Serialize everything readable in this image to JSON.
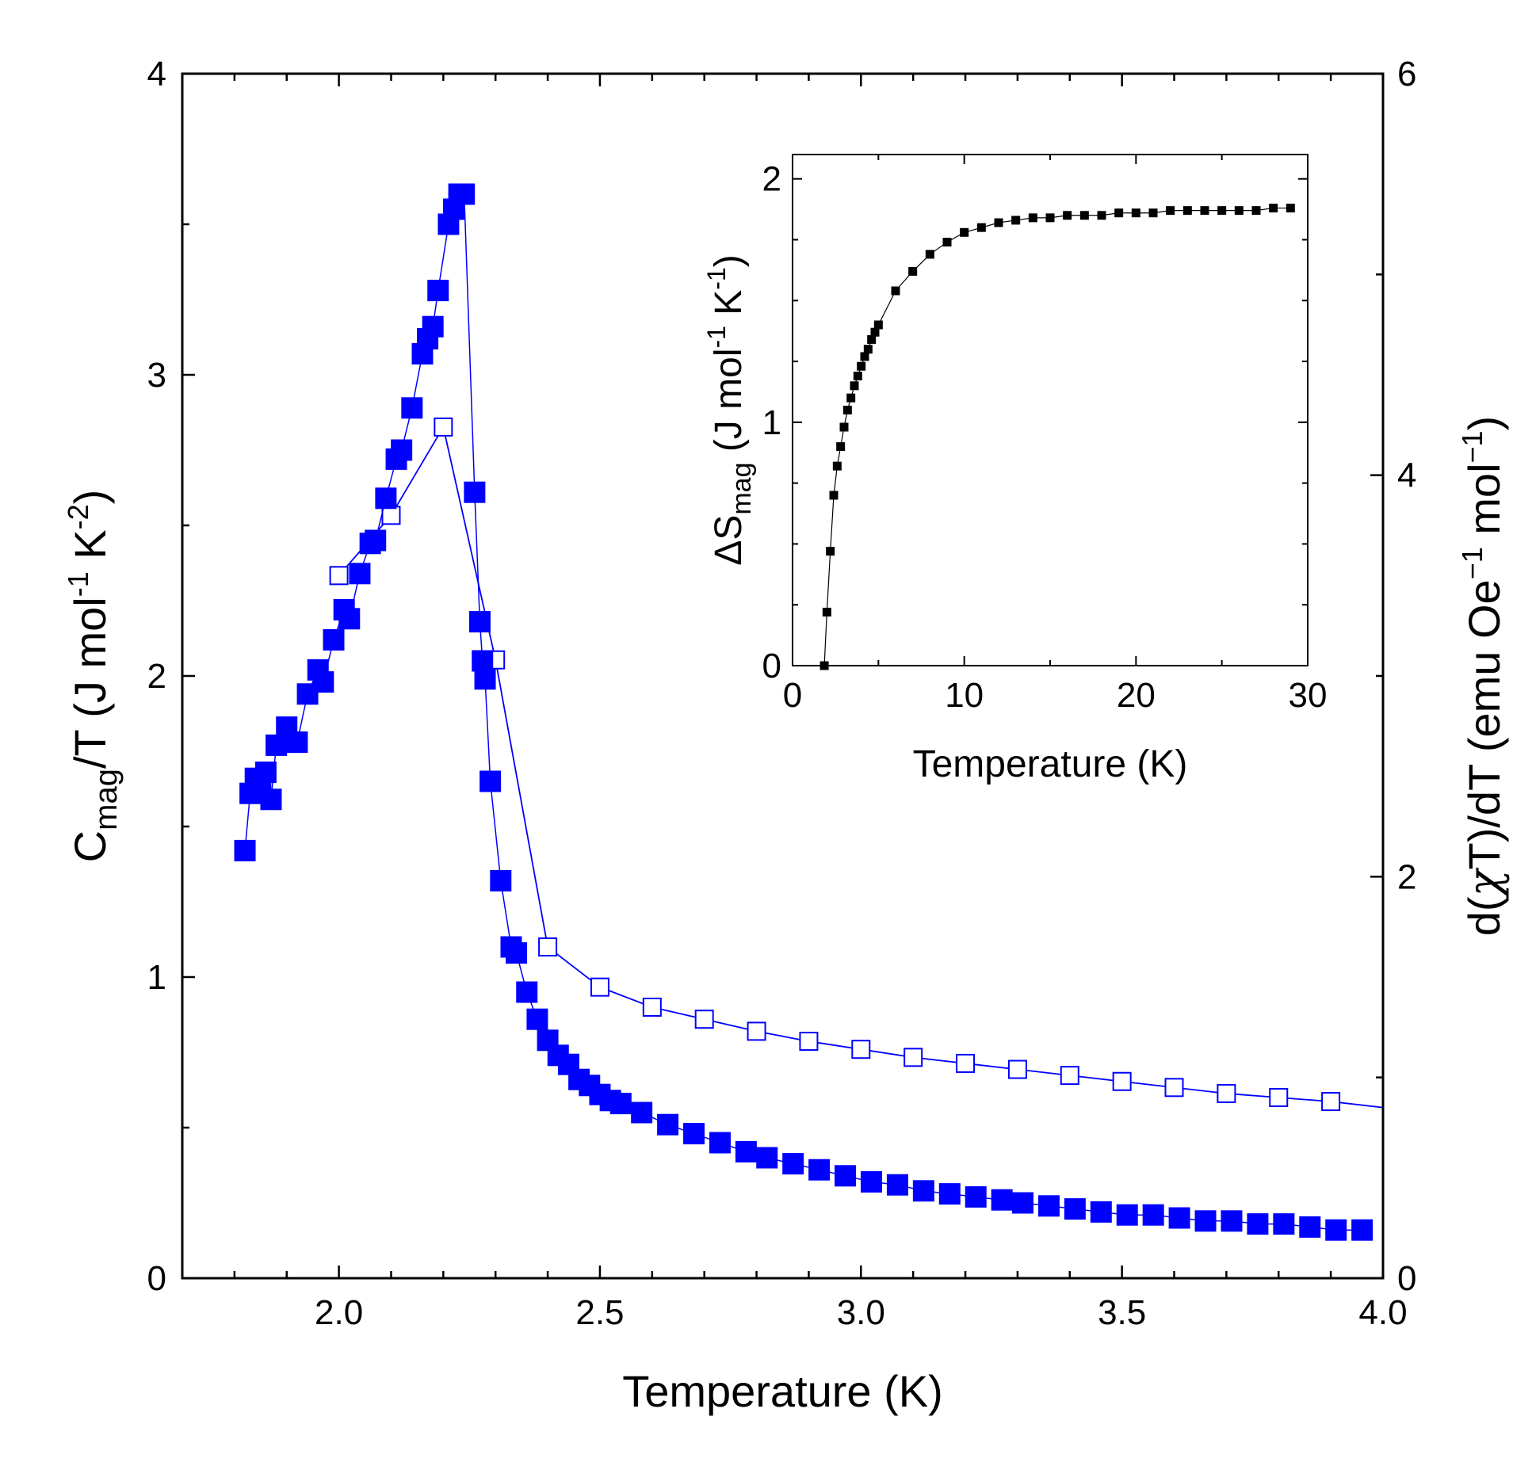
{
  "chart_data": [
    {
      "id": "main",
      "type": "scatter",
      "xlabel": "Temperature (K)",
      "ylabel_left": {
        "main": "C",
        "sub": "mag",
        "rest": "/T (J mol",
        "sup1": "-1",
        "mid": " K",
        "sup2": "-2",
        "end": ")"
      },
      "ylabel_right": {
        "pre": "d(",
        "chi": "χ",
        "mid": "T)/dT (emu Oe",
        "sup1": "−1",
        "mid2": " mol",
        "sup2": "−1",
        "end": ")"
      },
      "xlim": [
        1.7,
        4.0
      ],
      "ylim_left": [
        0,
        4
      ],
      "ylim_right": [
        0,
        6
      ],
      "xticks": [
        2.0,
        2.5,
        3.0,
        3.5,
        4.0
      ],
      "xtick_labels": [
        "2.0",
        "2.5",
        "3.0",
        "3.5",
        "4.0"
      ],
      "yticks_left": [
        0,
        1,
        2,
        3,
        4
      ],
      "ytick_labels_left": [
        "0",
        "1",
        "2",
        "3",
        "4"
      ],
      "yticks_right": [
        0,
        2,
        4,
        6
      ],
      "ytick_labels_right": [
        "0",
        "2",
        "4",
        "6"
      ],
      "color": "#0000ff",
      "series": [
        {
          "name": "Cmag/T",
          "axis": "left",
          "marker": "filled-square",
          "x": [
            1.82,
            1.83,
            1.84,
            1.85,
            1.86,
            1.87,
            1.88,
            1.9,
            1.91,
            1.92,
            1.94,
            1.96,
            1.97,
            1.99,
            2.01,
            2.02,
            2.04,
            2.06,
            2.07,
            2.09,
            2.11,
            2.12,
            2.14,
            2.16,
            2.17,
            2.18,
            2.19,
            2.21,
            2.22,
            2.23,
            2.24,
            2.26,
            2.27,
            2.275,
            2.28,
            2.29,
            2.31,
            2.33,
            2.34,
            2.36,
            2.38,
            2.4,
            2.42,
            2.44,
            2.46,
            2.48,
            2.5,
            2.52,
            2.54,
            2.58,
            2.63,
            2.68,
            2.73,
            2.78,
            2.82,
            2.87,
            2.92,
            2.97,
            3.02,
            3.07,
            3.12,
            3.17,
            3.22,
            3.27,
            3.31,
            3.36,
            3.41,
            3.46,
            3.51,
            3.56,
            3.61,
            3.66,
            3.71,
            3.76,
            3.81,
            3.86,
            3.91,
            3.96
          ],
          "values": [
            1.42,
            1.61,
            1.66,
            1.62,
            1.68,
            1.59,
            1.77,
            1.83,
            1.78,
            1.78,
            1.94,
            2.02,
            1.98,
            2.12,
            2.22,
            2.19,
            2.34,
            2.44,
            2.45,
            2.59,
            2.72,
            2.75,
            2.89,
            3.07,
            3.12,
            3.16,
            3.28,
            3.5,
            3.55,
            3.6,
            3.6,
            2.61,
            2.18,
            2.05,
            1.99,
            1.65,
            1.32,
            1.1,
            1.08,
            0.95,
            0.86,
            0.79,
            0.74,
            0.71,
            0.66,
            0.64,
            0.61,
            0.59,
            0.58,
            0.55,
            0.51,
            0.48,
            0.45,
            0.42,
            0.4,
            0.38,
            0.36,
            0.34,
            0.32,
            0.31,
            0.29,
            0.28,
            0.27,
            0.26,
            0.25,
            0.24,
            0.23,
            0.22,
            0.21,
            0.21,
            0.2,
            0.19,
            0.19,
            0.18,
            0.18,
            0.17,
            0.16,
            0.16
          ]
        },
        {
          "name": "d(chiT)/dT",
          "axis": "right",
          "marker": "open-square",
          "x": [
            2.0,
            2.1,
            2.2,
            2.3,
            2.4,
            2.5,
            2.6,
            2.7,
            2.8,
            2.9,
            3.0,
            3.1,
            3.2,
            3.3,
            3.4,
            3.5,
            3.6,
            3.7,
            3.8,
            3.9,
            4.0
          ],
          "values": [
            3.5,
            3.8,
            4.24,
            3.08,
            1.65,
            1.45,
            1.35,
            1.29,
            1.23,
            1.18,
            1.14,
            1.1,
            1.07,
            1.04,
            1.01,
            0.98,
            0.95,
            0.92,
            0.9,
            0.88,
            0.85
          ]
        }
      ]
    },
    {
      "id": "inset",
      "type": "line",
      "xlabel": "Temperature (K)",
      "ylabel": {
        "pre": "ΔS",
        "sub": "mag",
        "rest": " (J mol",
        "sup1": "-1",
        "mid": " K",
        "sup2": "-1",
        "end": ")"
      },
      "xlim": [
        0,
        30
      ],
      "ylim": [
        0,
        2.1
      ],
      "xticks": [
        0,
        10,
        20,
        30
      ],
      "xtick_labels": [
        "0",
        "10",
        "20",
        "30"
      ],
      "yticks": [
        0,
        1,
        2
      ],
      "ytick_labels": [
        "0",
        "1",
        "2"
      ],
      "color": "#000000",
      "series": [
        {
          "name": "Delta S_mag",
          "marker": "filled-square",
          "x": [
            1.85,
            2.0,
            2.2,
            2.4,
            2.6,
            2.8,
            3.0,
            3.2,
            3.4,
            3.6,
            3.8,
            4.0,
            4.2,
            4.4,
            4.6,
            4.8,
            5.0,
            6.0,
            7.0,
            8.0,
            9.0,
            10.0,
            11.0,
            12.0,
            13.0,
            14.0,
            15.0,
            16.0,
            17.0,
            18.0,
            19.0,
            20.0,
            21.0,
            22.0,
            23.0,
            24.0,
            25.0,
            26.0,
            27.0,
            28.0,
            29.0
          ],
          "values": [
            0.0,
            0.22,
            0.47,
            0.7,
            0.82,
            0.9,
            0.98,
            1.05,
            1.1,
            1.15,
            1.19,
            1.23,
            1.27,
            1.3,
            1.34,
            1.37,
            1.4,
            1.54,
            1.62,
            1.69,
            1.74,
            1.78,
            1.8,
            1.82,
            1.83,
            1.84,
            1.84,
            1.85,
            1.85,
            1.85,
            1.86,
            1.86,
            1.86,
            1.87,
            1.87,
            1.87,
            1.87,
            1.87,
            1.87,
            1.88,
            1.88
          ]
        }
      ]
    }
  ]
}
